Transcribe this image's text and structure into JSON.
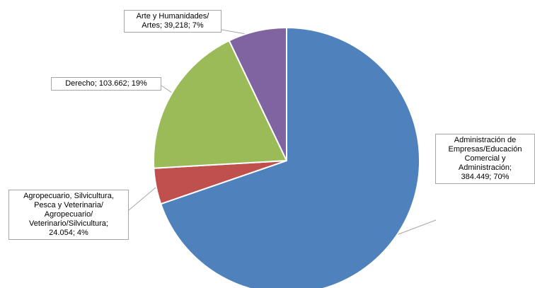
{
  "chart_data": {
    "type": "pie",
    "title": "",
    "slices": [
      {
        "name": "Administración de Empresas/Educación Comercial y Administración",
        "value": 384449,
        "percent": 70,
        "color": "#4F81BD",
        "label_lines": [
          "Administración de",
          "Empresas/Educación",
          "Comercial y",
          "Administración;",
          "384.449; 70%"
        ]
      },
      {
        "name": "Agropecuario, Silvicultura, Pesca y Veterinaria/ Agropecuario/ Veterinario/Silvicultura",
        "value": 24054,
        "percent": 4,
        "color": "#C0504D",
        "label_lines": [
          "Agropecuario, Silvicultura,",
          "Pesca y Veterinaria/",
          "Agropecuario/",
          "Veterinario/Silvicultura;",
          "24.054; 4%"
        ]
      },
      {
        "name": "Derecho",
        "value": 103662,
        "percent": 19,
        "color": "#9BBB59",
        "label_lines": [
          "Derecho; 103.662; 19%"
        ]
      },
      {
        "name": "Arte y Humanidades/ Artes",
        "value": 39218,
        "percent": 7,
        "color": "#8064A2",
        "label_lines": [
          "Arte y Humanidades/",
          "Artes; 39,218; 7%"
        ]
      }
    ],
    "legend": "none",
    "data_labels": "callouts"
  }
}
